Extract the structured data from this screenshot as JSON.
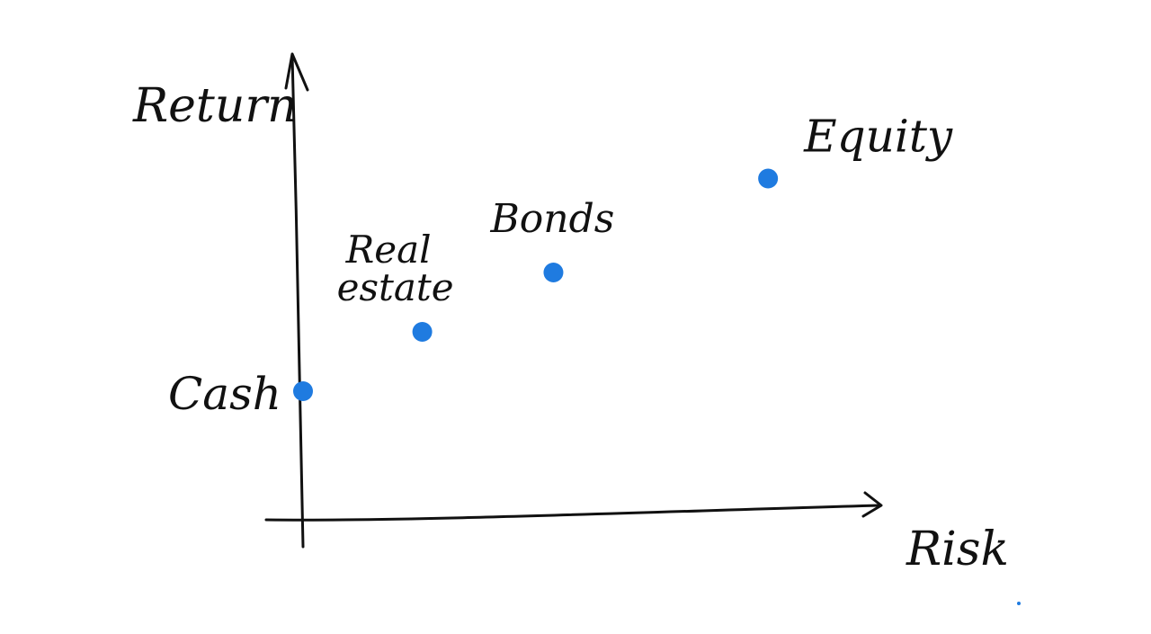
{
  "chart_data": {
    "type": "scatter",
    "title": "",
    "xlabel": "Risk",
    "ylabel": "Return",
    "xlim": [
      0,
      10
    ],
    "ylim": [
      0,
      10
    ],
    "grid": false,
    "legend": "none",
    "point_color": "#1f7be0",
    "ink_color": "#111111",
    "points": [
      {
        "name_lines": [
          "Cash"
        ],
        "x": 0.0,
        "y": 3.0
      },
      {
        "name_lines": [
          "Real",
          "estate"
        ],
        "x": 2.0,
        "y": 4.2
      },
      {
        "name_lines": [
          "Bonds"
        ],
        "x": 4.2,
        "y": 5.4
      },
      {
        "name_lines": [
          "Equity"
        ],
        "x": 7.8,
        "y": 7.3
      }
    ]
  }
}
